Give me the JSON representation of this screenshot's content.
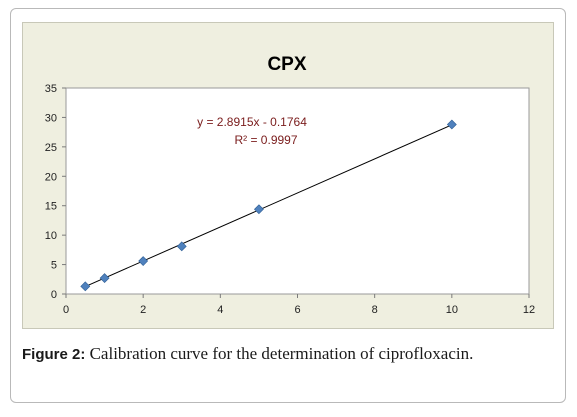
{
  "chart_data": {
    "type": "scatter",
    "title": "CPX",
    "xlabel": "",
    "ylabel": "",
    "xlim": [
      0,
      12
    ],
    "ylim": [
      0,
      35
    ],
    "xticks": [
      0,
      2,
      4,
      6,
      8,
      10,
      12
    ],
    "yticks": [
      0,
      5,
      10,
      15,
      20,
      25,
      30,
      35
    ],
    "grid": false,
    "legend": "none",
    "series": [
      {
        "x": [
          0.5,
          1,
          2,
          3,
          5,
          10
        ],
        "y": [
          1.3,
          2.7,
          5.6,
          8.1,
          14.4,
          28.8
        ],
        "color": "#4f81bd",
        "marker": "diamond"
      }
    ],
    "trendline": {
      "slope": 2.8915,
      "intercept": -0.1764,
      "x_range": [
        0.5,
        10
      ],
      "color": "#000000"
    },
    "annotation": {
      "equation": "y = 2.8915x - 0.1764",
      "r2": "R² = 0.9997",
      "color": "#7a1c1c"
    }
  },
  "caption": {
    "label": "Figure 2:",
    "text": " Calibration curve for the determination of ciprofloxacin."
  }
}
